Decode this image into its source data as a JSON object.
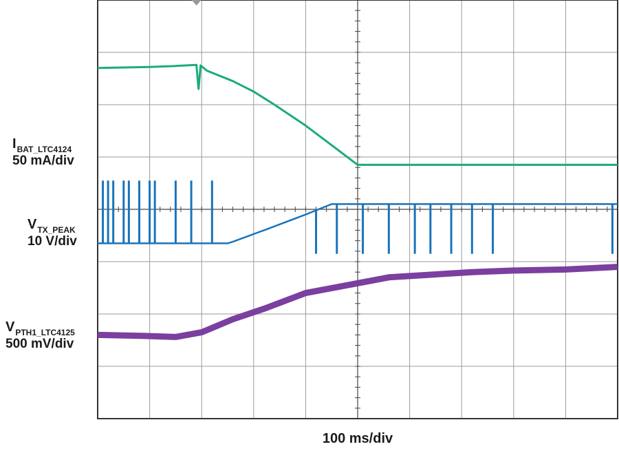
{
  "chart_data": {
    "type": "line",
    "title": "",
    "xlabel": "100 ms/div",
    "x_unit": "ms",
    "grid": true,
    "grid_divisions": {
      "x": 10,
      "y": 8
    },
    "xlim": [
      0,
      1000
    ],
    "series": [
      {
        "name_main": "I",
        "name_sub": "BAT_LTC4124",
        "scale": "50 mA/div",
        "color": "#1bab7c",
        "y_unit": "div",
        "points": [
          [
            0,
            -2.7
          ],
          [
            100,
            -2.72
          ],
          [
            150,
            -2.74
          ],
          [
            190,
            -2.76
          ],
          [
            194,
            -2.3
          ],
          [
            198,
            -2.75
          ],
          [
            210,
            -2.65
          ],
          [
            260,
            -2.45
          ],
          [
            300,
            -2.25
          ],
          [
            340,
            -2.0
          ],
          [
            400,
            -1.6
          ],
          [
            460,
            -1.15
          ],
          [
            500,
            -0.85
          ],
          [
            1000,
            -0.85
          ]
        ]
      },
      {
        "name_main": "V",
        "name_sub": "TX_PEAK",
        "scale": "10 V/div",
        "color": "#1a73ba",
        "y_unit": "div",
        "spikes": [
          [
            10,
            -0.55
          ],
          [
            20,
            -0.55
          ],
          [
            30,
            -0.55
          ],
          [
            50,
            -0.55
          ],
          [
            60,
            -0.55
          ],
          [
            80,
            -0.55
          ],
          [
            100,
            -0.55
          ],
          [
            110,
            -0.55
          ],
          [
            150,
            -0.55
          ],
          [
            180,
            -0.55
          ],
          [
            220,
            -0.55
          ],
          [
            420,
            0.85
          ],
          [
            460,
            0.85
          ],
          [
            510,
            0.85
          ],
          [
            560,
            0.85
          ],
          [
            610,
            0.85
          ],
          [
            640,
            0.85
          ],
          [
            680,
            0.85
          ],
          [
            720,
            0.85
          ],
          [
            760,
            0.85
          ],
          [
            990,
            0.85
          ]
        ],
        "points": [
          [
            0,
            0.65
          ],
          [
            200,
            0.65
          ],
          [
            250,
            0.65
          ],
          [
            260,
            0.62
          ],
          [
            320,
            0.4
          ],
          [
            400,
            0.1
          ],
          [
            450,
            -0.1
          ],
          [
            460,
            -0.1
          ],
          [
            1000,
            -0.1
          ]
        ]
      },
      {
        "name_main": "V",
        "name_sub": "PTH1_LTC4125",
        "scale": "500 mV/div",
        "color": "#7b3fa0",
        "y_unit": "div",
        "points": [
          [
            0,
            2.4
          ],
          [
            90,
            2.42
          ],
          [
            150,
            2.44
          ],
          [
            200,
            2.35
          ],
          [
            260,
            2.1
          ],
          [
            320,
            1.9
          ],
          [
            400,
            1.6
          ],
          [
            480,
            1.45
          ],
          [
            560,
            1.3
          ],
          [
            640,
            1.25
          ],
          [
            720,
            1.2
          ],
          [
            800,
            1.17
          ],
          [
            900,
            1.15
          ],
          [
            1000,
            1.1
          ]
        ]
      }
    ]
  }
}
